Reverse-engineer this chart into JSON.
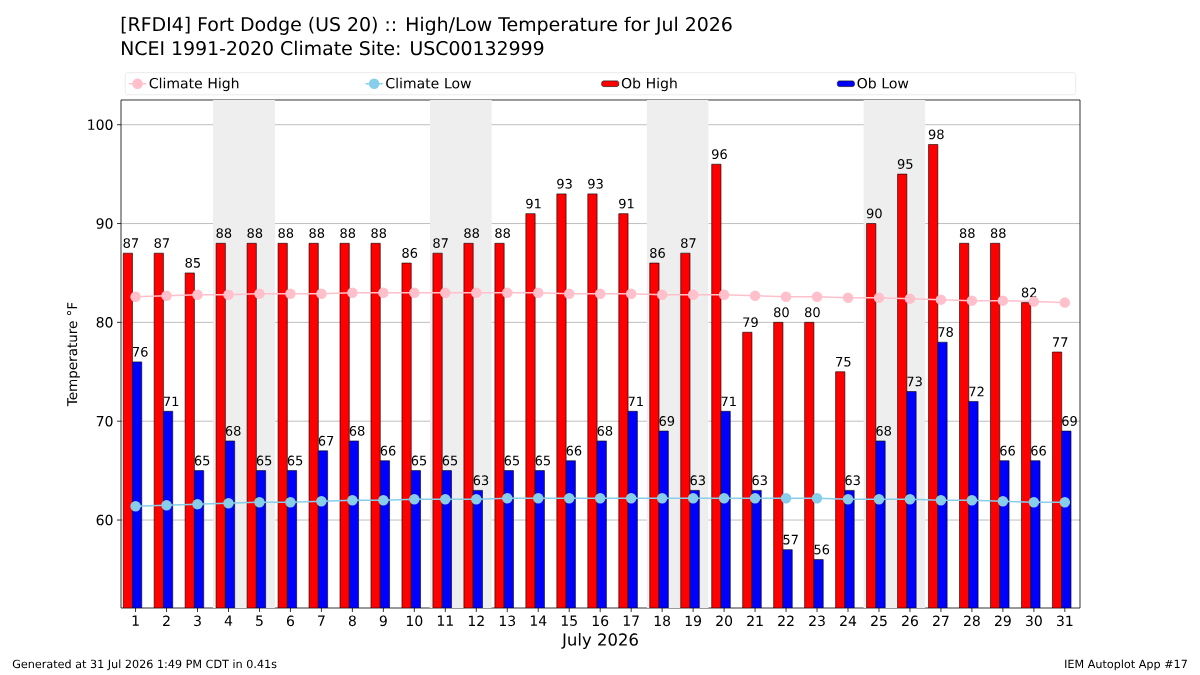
{
  "chart_data": {
    "type": "bar",
    "title": "[RFDI4] Fort Dodge (US 20) :: High/Low Temperature for Jul 2026",
    "subtitle": "NCEI 1991-2020 Climate Site: USC00132999",
    "xlabel": "July 2026",
    "ylabel": "Temperature °F",
    "x": [
      1,
      2,
      3,
      4,
      5,
      6,
      7,
      8,
      9,
      10,
      11,
      12,
      13,
      14,
      15,
      16,
      17,
      18,
      19,
      20,
      21,
      22,
      23,
      24,
      25,
      26,
      27,
      28,
      29,
      30,
      31
    ],
    "xlim": [
      0.53,
      31.49
    ],
    "xticks": [
      1,
      2,
      3,
      4,
      5,
      6,
      7,
      8,
      9,
      10,
      11,
      12,
      13,
      14,
      15,
      16,
      17,
      18,
      19,
      20,
      21,
      22,
      23,
      24,
      25,
      26,
      27,
      28,
      29,
      30,
      31
    ],
    "ylim": [
      51.1,
      102.5
    ],
    "yticks": [
      60,
      70,
      80,
      90,
      100
    ],
    "grid": "y",
    "legend": "top",
    "bands": [
      {
        "axis": "x",
        "from": 3.5,
        "to": 5.5,
        "color": "#eeeeee"
      },
      {
        "axis": "x",
        "from": 10.5,
        "to": 12.5,
        "color": "#eeeeee"
      },
      {
        "axis": "x",
        "from": 17.5,
        "to": 19.5,
        "color": "#eeeeee"
      },
      {
        "axis": "x",
        "from": 24.5,
        "to": 26.5,
        "color": "#eeeeee"
      }
    ],
    "series": [
      {
        "name": "Climate High",
        "type": "line",
        "color": "#ffc0cb",
        "marker": "circle",
        "line_style": "solid",
        "values": [
          82.6,
          82.7,
          82.8,
          82.8,
          82.9,
          82.9,
          82.9,
          83.0,
          83.0,
          83.0,
          83.0,
          83.0,
          83.0,
          83.0,
          82.9,
          82.9,
          82.9,
          82.8,
          82.8,
          82.8,
          82.7,
          82.6,
          82.6,
          82.5,
          82.5,
          82.4,
          82.3,
          82.2,
          82.2,
          82.1,
          82.0
        ]
      },
      {
        "name": "Climate Low",
        "type": "line",
        "color": "#87ceeb",
        "marker": "circle",
        "line_style": "solid",
        "values": [
          61.4,
          61.5,
          61.6,
          61.7,
          61.8,
          61.8,
          61.9,
          62.0,
          62.0,
          62.1,
          62.1,
          62.1,
          62.2,
          62.2,
          62.2,
          62.2,
          62.2,
          62.2,
          62.2,
          62.2,
          62.2,
          62.2,
          62.2,
          62.1,
          62.1,
          62.1,
          62.0,
          62.0,
          61.9,
          61.8,
          61.8
        ]
      },
      {
        "name": "Ob High",
        "color": "#ff0000",
        "data_labels": true,
        "values": [
          87,
          87,
          85,
          88,
          88,
          88,
          88,
          88,
          88,
          86,
          87,
          88,
          88,
          91,
          93,
          93,
          91,
          86,
          87,
          96,
          79,
          80,
          80,
          75,
          90,
          95,
          98,
          88,
          88,
          82,
          77
        ]
      },
      {
        "name": "Ob Low",
        "color": "#0000ff",
        "data_labels": true,
        "values": [
          76,
          71,
          65,
          68,
          65,
          65,
          67,
          68,
          66,
          65,
          65,
          63,
          65,
          65,
          66,
          68,
          71,
          69,
          63,
          71,
          63,
          57,
          56,
          63,
          68,
          73,
          78,
          72,
          66,
          66,
          69
        ]
      }
    ],
    "annotations": [
      "Generated at 31 Jul 2026 1:49 PM CDT in 0.41s",
      "IEM Autoplot App #17"
    ]
  }
}
